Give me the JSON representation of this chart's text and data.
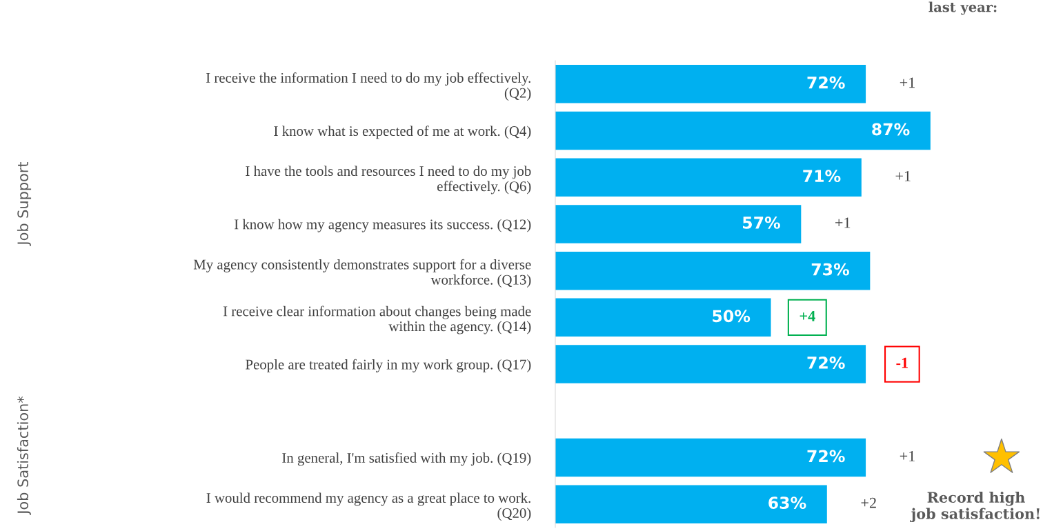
{
  "chart_data": {
    "type": "bar",
    "orientation": "horizontal",
    "categories": [
      "I receive the information I need to do my job effectively.\n(Q2)",
      "I know what is expected of me at work. (Q4)",
      "I have the tools and resources I need to do my job\neffectively. (Q6)",
      "I know how my agency measures its success. (Q12)",
      "My agency consistently demonstrates support for a diverse\nworkforce. (Q13)",
      "I receive clear information about changes being made\nwithin the agency. (Q14)",
      "People are treated fairly in my work group. (Q17)",
      null,
      "In general, I'm satisfied with my job. (Q19)",
      "I would recommend my agency as a great place to work.\n(Q20)"
    ],
    "values": [
      72,
      87,
      71,
      57,
      73,
      50,
      72,
      null,
      72,
      63
    ],
    "value_labels": [
      "72%",
      "87%",
      "71%",
      "57%",
      "73%",
      "50%",
      "72%",
      null,
      "72%",
      "63%"
    ],
    "color": "#00b0f0",
    "annotations": [
      "last year:",
      "Job Support",
      "Job Satisfaction*",
      "Record high\njob satisfaction!",
      {
        "text": "+1",
        "x": 72,
        "y": "I receive the information I need to do my job effectively.\n(Q2)"
      },
      {
        "text": "+1",
        "x": 71,
        "y": "I have the tools and resources I need to do my job\neffectively. (Q6)"
      },
      {
        "text": "+1",
        "x": 57,
        "y": "I know how my agency measures its success. (Q12)"
      },
      {
        "text": "+4",
        "x": 50,
        "y": "I receive clear information about changes being made\nwithin the agency. (Q14)"
      },
      {
        "text": "-1",
        "x": 72,
        "y": "People are treated fairly in my work group. (Q17)"
      },
      {
        "text": "+1",
        "x": 72,
        "y": "In general, I'm satisfied with my job. (Q19)"
      },
      {
        "text": "+2",
        "x": 63,
        "y": "I would recommend my agency as a great place to work.\n(Q20)"
      }
    ]
  }
}
